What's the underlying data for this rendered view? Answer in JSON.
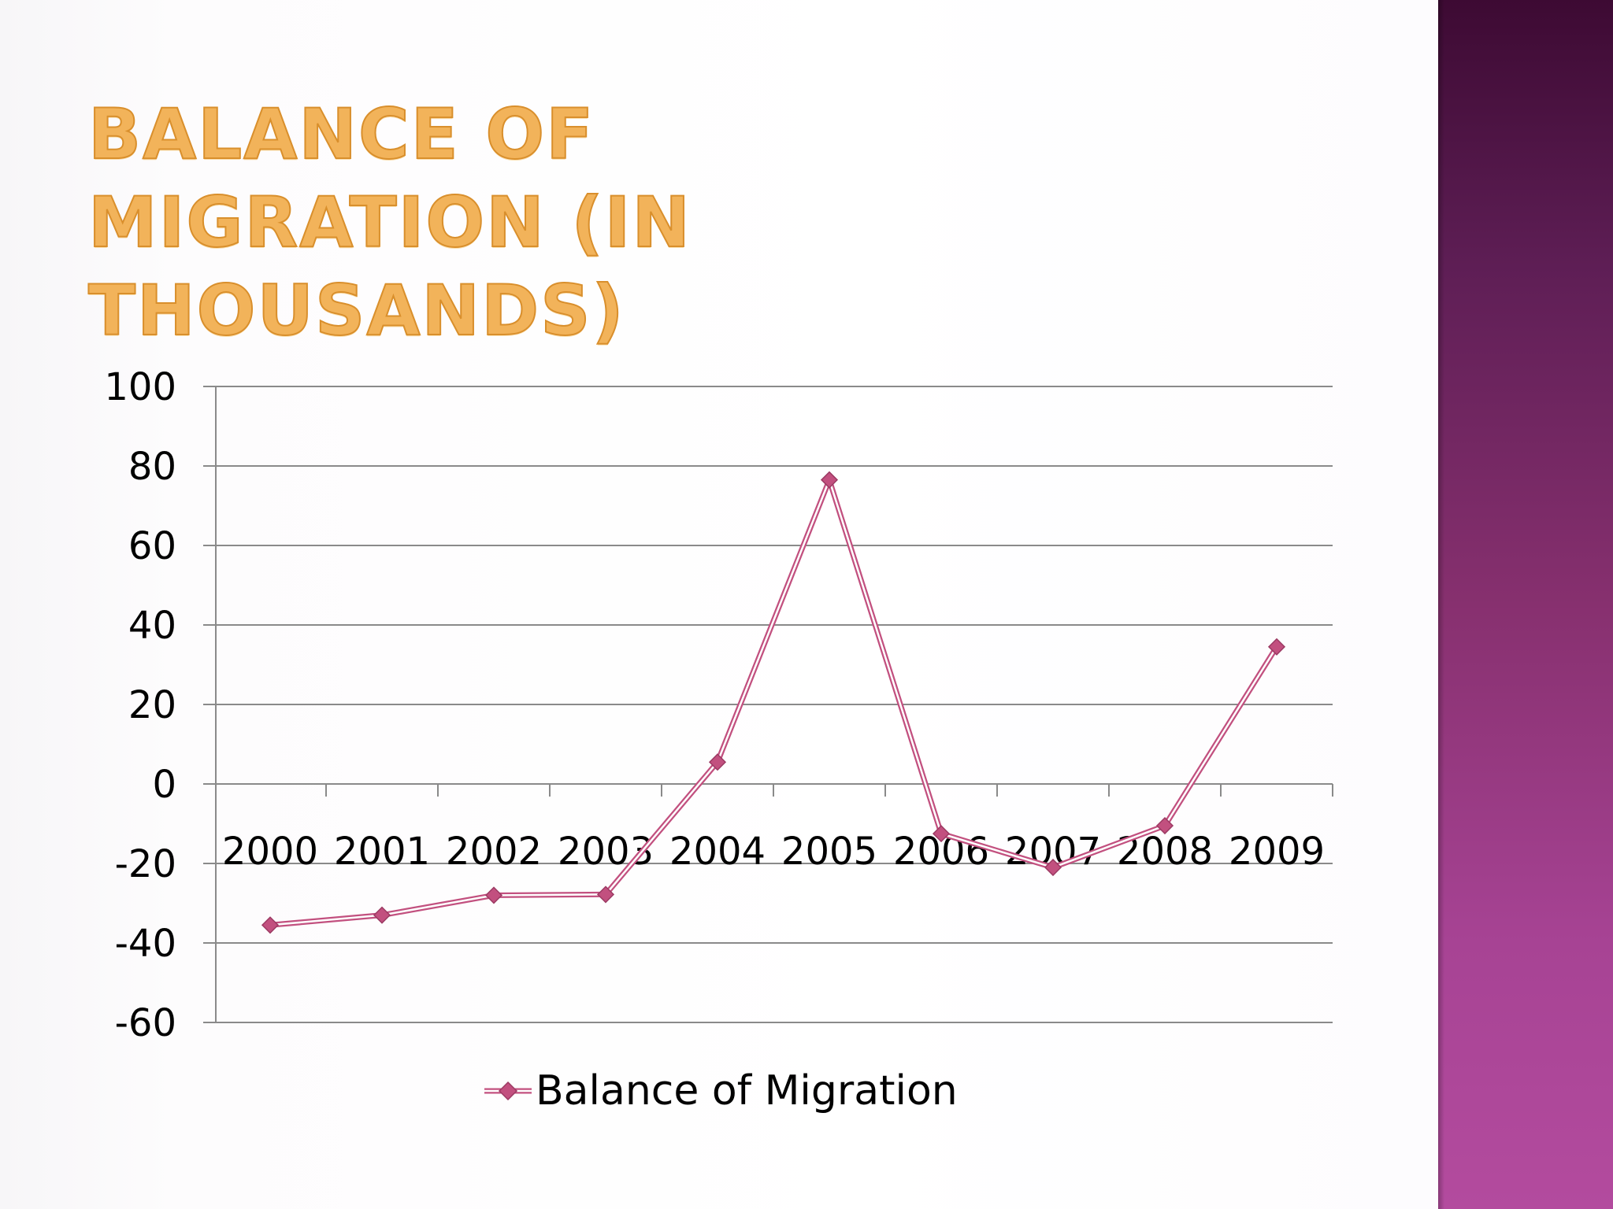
{
  "slide": {
    "title": "Balance of Migration (in thousands)",
    "accent_color": "#f2b35a",
    "sidebar_color_top": "#3d0a33",
    "sidebar_color_bottom": "#b34b9e"
  },
  "chart_data": {
    "type": "line",
    "title": "Balance of Migration (in thousands)",
    "xlabel": "",
    "ylabel": "",
    "categories": [
      "2000",
      "2001",
      "2002",
      "2003",
      "2004",
      "2005",
      "2006",
      "2007",
      "2008",
      "2009"
    ],
    "series": [
      {
        "name": "Balance of Migration",
        "color": "#c2507f",
        "values": [
          -35.5,
          -33,
          -28,
          -27.8,
          5.5,
          76.5,
          -12.5,
          -21,
          -10.5,
          34.5
        ]
      }
    ],
    "ylim": [
      -60,
      100
    ],
    "yticks": [
      100,
      80,
      60,
      40,
      20,
      0,
      -20,
      -40,
      -60
    ],
    "grid": true,
    "legend": "bottom",
    "marker": "diamond"
  }
}
